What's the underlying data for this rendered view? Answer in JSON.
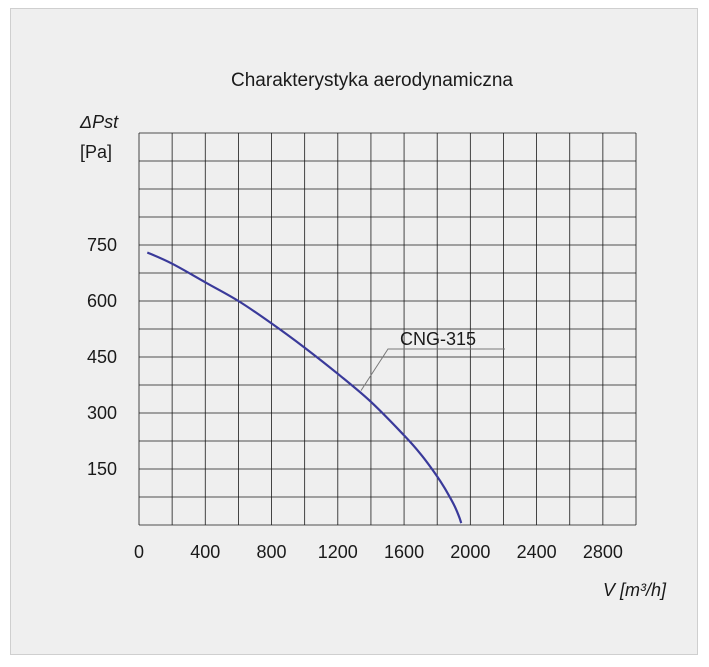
{
  "chart_data": {
    "type": "line",
    "title": "Charakterystyka aerodynamiczna",
    "ylabel_symbol": "ΔPst",
    "ylabel_unit": "[Pa]",
    "xlabel": "V [m³/h]",
    "xlim": [
      0,
      3000
    ],
    "ylim": [
      0,
      1050
    ],
    "grid": true,
    "x_tick_labels": [
      "0",
      "400",
      "800",
      "1200",
      "1600",
      "2000",
      "2400",
      "2800"
    ],
    "x_tick_values": [
      0,
      400,
      800,
      1200,
      1600,
      2000,
      2400,
      2800
    ],
    "y_tick_labels": [
      "150",
      "300",
      "450",
      "600",
      "750"
    ],
    "y_tick_values": [
      150,
      300,
      450,
      600,
      750
    ],
    "series": [
      {
        "name": "CNG-315",
        "color": "#3a3a9a",
        "x": [
          50,
          200,
          400,
          600,
          800,
          1000,
          1200,
          1400,
          1600,
          1700,
          1800,
          1850,
          1900,
          1930,
          1945
        ],
        "y": [
          730,
          700,
          650,
          600,
          540,
          475,
          405,
          330,
          240,
          190,
          130,
          95,
          55,
          25,
          5
        ]
      }
    ],
    "annotation": {
      "text": "CNG-315",
      "x": 1340,
      "y": 360
    }
  }
}
